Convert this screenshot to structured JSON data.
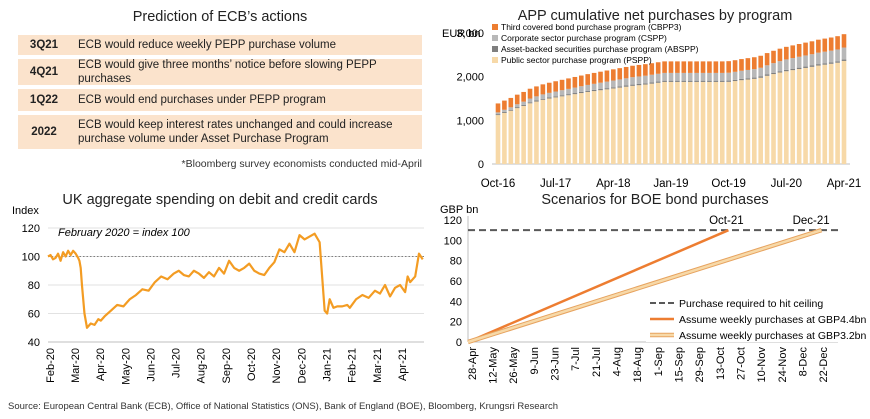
{
  "ecb": {
    "title": "Prediction of ECB’s actions",
    "rows": [
      {
        "q": "3Q21",
        "text": "ECB would reduce weekly PEPP purchase volume"
      },
      {
        "q": "4Q21",
        "text": "ECB would give three months’ notice before slowing PEPP purchases"
      },
      {
        "q": "1Q22",
        "text": "ECB would end purchases under PEPP program"
      },
      {
        "q": "2022",
        "text": "ECB would keep interest rates unchanged and could increase purchase volume under Asset Purchase Program"
      }
    ],
    "footnote": "*Bloomberg survey economists conducted mid-April"
  },
  "source": "Source: European Central Bank (ECB), Office of National Statistics (ONS), Bank of England (BOE), Bloomberg, Krungsri Research",
  "chart_data": [
    {
      "type": "area",
      "stacked": true,
      "title": "APP cumulative net purchases by program",
      "ylabel": "EUR bn",
      "ylim": [
        0,
        3000
      ],
      "yticks": [
        "0",
        "1,000",
        "2,000",
        "3,000"
      ],
      "xticks": [
        "Oct-16",
        "Jul-17",
        "Apr-18",
        "Jan-19",
        "Oct-19",
        "Jul-20",
        "Apr-21"
      ],
      "legend_position": "top-left",
      "colors": {
        "PSPP": "#f7d9a8",
        "ABSPP": "#7f7f7f",
        "CSPP": "#b8b8b8",
        "CBPP3": "#ed7d31"
      },
      "series": [
        {
          "name": "Third covered bond purchase program (CBPP3)",
          "key": "CBPP3"
        },
        {
          "name": "Corporate sector purchase program (CSPP)",
          "key": "CSPP"
        },
        {
          "name": "Asset-backed securities purchase program (ABSPP)",
          "key": "ABSPP"
        },
        {
          "name": "Public sector purchase program (PSPP)",
          "key": "PSPP"
        }
      ],
      "months": [
        "Oct-16",
        "Nov-16",
        "Dec-16",
        "Jan-17",
        "Feb-17",
        "Mar-17",
        "Apr-17",
        "May-17",
        "Jun-17",
        "Jul-17",
        "Aug-17",
        "Sep-17",
        "Oct-17",
        "Nov-17",
        "Dec-17",
        "Jan-18",
        "Feb-18",
        "Mar-18",
        "Apr-18",
        "May-18",
        "Jun-18",
        "Jul-18",
        "Aug-18",
        "Sep-18",
        "Oct-18",
        "Nov-18",
        "Dec-18",
        "Jan-19",
        "Feb-19",
        "Mar-19",
        "Apr-19",
        "May-19",
        "Jun-19",
        "Jul-19",
        "Aug-19",
        "Sep-19",
        "Oct-19",
        "Nov-19",
        "Dec-19",
        "Jan-20",
        "Feb-20",
        "Mar-20",
        "Apr-20",
        "May-20",
        "Jun-20",
        "Jul-20",
        "Aug-20",
        "Sep-20",
        "Oct-20",
        "Nov-20",
        "Dec-20",
        "Jan-21",
        "Feb-21",
        "Mar-21",
        "Apr-21"
      ],
      "PSPP": [
        1120,
        1170,
        1220,
        1280,
        1330,
        1390,
        1430,
        1470,
        1500,
        1525,
        1550,
        1575,
        1600,
        1625,
        1650,
        1670,
        1690,
        1710,
        1730,
        1750,
        1770,
        1790,
        1805,
        1820,
        1840,
        1860,
        1880,
        1880,
        1880,
        1880,
        1880,
        1880,
        1880,
        1880,
        1880,
        1880,
        1882,
        1900,
        1920,
        1935,
        1950,
        1975,
        2020,
        2060,
        2095,
        2125,
        2150,
        2175,
        2200,
        2225,
        2255,
        2275,
        2295,
        2320,
        2360
      ],
      "ABSPP": [
        22,
        22,
        23,
        23,
        23,
        24,
        24,
        24,
        24,
        25,
        25,
        25,
        25,
        26,
        26,
        26,
        27,
        27,
        27,
        27,
        27,
        28,
        28,
        28,
        28,
        28,
        28,
        28,
        28,
        28,
        28,
        28,
        28,
        28,
        28,
        28,
        28,
        28,
        29,
        29,
        29,
        29,
        30,
        30,
        30,
        30,
        31,
        31,
        31,
        31,
        32,
        32,
        32,
        32,
        32
      ],
      "CSPP": [
        40,
        50,
        55,
        65,
        75,
        85,
        95,
        100,
        105,
        110,
        115,
        120,
        125,
        130,
        135,
        140,
        145,
        150,
        155,
        160,
        165,
        170,
        172,
        174,
        176,
        178,
        178,
        178,
        178,
        178,
        178,
        178,
        178,
        178,
        178,
        178,
        180,
        183,
        186,
        190,
        194,
        200,
        210,
        220,
        230,
        240,
        245,
        250,
        255,
        258,
        262,
        265,
        268,
        271,
        275
      ],
      "CBPP3": [
        205,
        210,
        215,
        220,
        222,
        225,
        228,
        230,
        232,
        235,
        238,
        240,
        243,
        245,
        247,
        250,
        252,
        254,
        256,
        258,
        260,
        262,
        263,
        264,
        264,
        264,
        264,
        264,
        264,
        264,
        264,
        264,
        264,
        264,
        264,
        264,
        265,
        266,
        268,
        270,
        272,
        275,
        280,
        283,
        286,
        288,
        290,
        292,
        294,
        296,
        298,
        300,
        302,
        304,
        306
      ]
    },
    {
      "type": "line",
      "title": "UK aggregate spending on debit and credit cards",
      "ylabel": "Index",
      "annotation": "February 2020 = index 100",
      "reference_line": 100,
      "ylim": [
        40,
        120
      ],
      "yticks": [
        40,
        60,
        80,
        100,
        120
      ],
      "xticks": [
        "Feb-20",
        "Mar-20",
        "Apr-20",
        "May-20",
        "Jun-20",
        "Jul-20",
        "Aug-20",
        "Sep-20",
        "Oct-20",
        "Nov-20",
        "Dec-20",
        "Jan-21",
        "Feb-21",
        "Mar-21",
        "Apr-21"
      ],
      "color": "#f39c23",
      "x": [
        0,
        0.1,
        0.2,
        0.3,
        0.4,
        0.5,
        0.6,
        0.7,
        0.8,
        0.9,
        1.0,
        1.1,
        1.2,
        1.25,
        1.3,
        1.35,
        1.45,
        1.55,
        1.7,
        1.85,
        2.0,
        2.1,
        2.25,
        2.5,
        2.75,
        3.0,
        3.25,
        3.5,
        3.75,
        4.0,
        4.25,
        4.5,
        4.75,
        5.0,
        5.2,
        5.4,
        5.6,
        5.8,
        6.0,
        6.2,
        6.4,
        6.6,
        6.8,
        7.0,
        7.2,
        7.4,
        7.6,
        7.8,
        8.0,
        8.2,
        8.4,
        8.6,
        8.8,
        9.0,
        9.2,
        9.4,
        9.6,
        9.8,
        10.0,
        10.2,
        10.4,
        10.6,
        10.8,
        11.0,
        11.1,
        11.2,
        11.35,
        11.5,
        11.7,
        11.9,
        12.0,
        12.25,
        12.5,
        12.75,
        13.0,
        13.2,
        13.4,
        13.6,
        13.8,
        14.0,
        14.2,
        14.3,
        14.4,
        14.5,
        14.6,
        14.75,
        14.9
      ],
      "values": [
        100,
        101,
        98,
        99,
        102,
        97,
        103,
        100,
        104,
        101,
        104,
        102,
        99,
        97,
        92,
        80,
        60,
        50,
        53,
        52,
        56,
        55,
        58,
        62,
        66,
        65,
        70,
        73,
        77,
        76,
        82,
        86,
        84,
        88,
        90,
        87,
        86,
        90,
        88,
        85,
        89,
        86,
        92,
        88,
        97,
        92,
        90,
        92,
        95,
        90,
        88,
        87,
        92,
        96,
        105,
        103,
        109,
        103,
        115,
        112,
        114,
        116,
        110,
        62,
        60,
        70,
        64,
        65,
        65,
        66,
        64,
        70,
        73,
        71,
        76,
        74,
        80,
        72,
        78,
        80,
        75,
        86,
        82,
        84,
        86,
        102,
        98
      ]
    },
    {
      "type": "line",
      "title": "Scenarios for BOE bond purchases",
      "ylabel": "GBP bn",
      "ylim": [
        0,
        120
      ],
      "yticks": [
        0,
        20,
        40,
        60,
        80,
        100,
        120
      ],
      "xticks": [
        "28-Apr",
        "12-May",
        "26-May",
        "9-Jun",
        "23-Jun",
        "7-Jul",
        "21-Jul",
        "4-Aug",
        "18-Aug",
        "1-Sep",
        "15-Sep",
        "29-Sep",
        "13-Oct",
        "27-Oct",
        "10-Nov",
        "24-Nov",
        "8-Dec",
        "22-Dec"
      ],
      "annotations": [
        {
          "text": "Oct-21",
          "x": 12.5
        },
        {
          "text": "Dec-21",
          "x": 16.6
        }
      ],
      "legend_position": "bottom-right",
      "series": [
        {
          "name": "Purchase required to hit ceiling",
          "color": "#595959",
          "dash": true,
          "x": [
            0,
            17.9
          ],
          "values": [
            110,
            110
          ]
        },
        {
          "name": "Assume weekly purchases at GBP4.4bn",
          "color": "#ed7d31",
          "x": [
            0,
            12.6
          ],
          "values": [
            0,
            110
          ]
        },
        {
          "name": "Assume weekly purchases at GBP3.2bn",
          "color": "#f7d9a8",
          "edge": "#e7a35f",
          "x": [
            0,
            17.1
          ],
          "values": [
            0,
            110
          ]
        }
      ]
    }
  ]
}
